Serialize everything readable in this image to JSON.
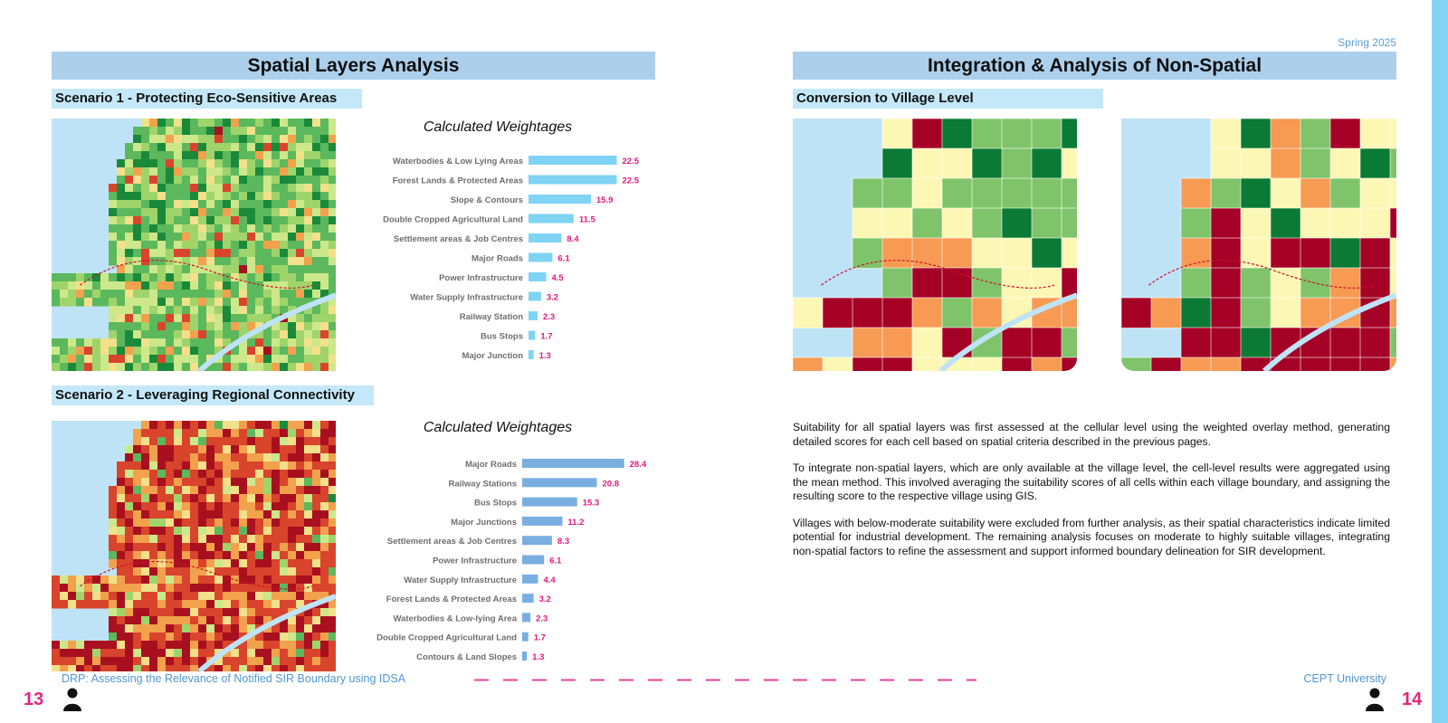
{
  "header": {
    "season": "Spring 2025"
  },
  "left": {
    "section_title": "Spatial Layers Analysis",
    "scenario1": {
      "title": "Scenario 1 - Protecting Eco-Sensitive Areas",
      "chart_title": "Calculated Weightages"
    },
    "scenario2": {
      "title": "Scenario 2 - Leveraging Regional Connectivity",
      "chart_title": "Calculated Weightages"
    }
  },
  "right": {
    "section_title": "Integration & Analysis of Non-Spatial",
    "subsection_title": "Conversion to Village Level",
    "paragraphs": [
      "Suitability for all spatial layers was first assessed at the cellular level using the weighted overlay method, generating detailed scores for each cell based on spatial criteria described in the previous pages.",
      "To integrate non-spatial layers, which are only available at the village level, the cell-level results were aggregated using the mean method. This involved averaging the suitability scores of all cells within each village boundary, and assigning the resulting score to the respective village using GIS.",
      "Villages with below-moderate suitability were excluded from further analysis, as their spatial characteristics indicate limited potential for industrial development. The remaining analysis focuses on moderate to highly suitable villages, integrating non-spatial factors to refine the assessment and support informed boundary delineation for SIR development."
    ]
  },
  "footer": {
    "left_text": "DRP: Assessing the Relevance of Notified SIR Boundary using IDSA",
    "right_text": "CEPT University",
    "page_left": "13",
    "page_right": "14"
  },
  "chart_data": [
    {
      "type": "bar",
      "orientation": "horizontal",
      "title": "Calculated Weightages",
      "categories": [
        "Waterbodies & Low Lying Areas",
        "Forest Lands & Protected Areas",
        "Slope & Contours",
        "Double Cropped Agricultural Land",
        "Settlement areas & Job Centres",
        "Major Roads",
        "Power Infrastructure",
        "Water Supply Infrastructure",
        "Railway Station",
        "Bus Stops",
        "Major Junction"
      ],
      "values": [
        22.5,
        22.5,
        15.9,
        11.5,
        8.4,
        6.1,
        4.5,
        3.2,
        2.3,
        1.7,
        1.3
      ],
      "labels": [
        "22.5",
        "22.5",
        "15.9",
        "11.5",
        "8.4",
        "6.1",
        "4.5",
        "3.2",
        "2.3",
        "1.7",
        "1.3"
      ],
      "xlim": [
        0,
        30
      ],
      "grid": false,
      "bar_color": "#7fd3f5",
      "label_color": "#e0197d"
    },
    {
      "type": "bar",
      "orientation": "horizontal",
      "title": "Calculated Weightages",
      "categories": [
        "Major Roads",
        "Railway Stations",
        "Bus Stops",
        "Major Junctions",
        "Settlement areas & Job Centres",
        "Power Infrastructure",
        "Water Supply Infrastructure",
        "Forest Lands & Protected Areas",
        "Waterbodies & Low-lying Area",
        "Double Cropped Agricultural Land",
        "Contours & Land Slopes"
      ],
      "values": [
        28.4,
        20.8,
        15.3,
        11.2,
        8.3,
        6.1,
        4.4,
        3.2,
        2.3,
        1.7,
        1.3
      ],
      "labels": [
        "28.4",
        "20.8",
        "15.3",
        "11.2",
        "8.3",
        "6.1",
        "4.4",
        "3.2",
        "2.3",
        "1.7",
        "1.3"
      ],
      "xlim": [
        0,
        30
      ],
      "grid": false,
      "bar_color": "#7aaee0",
      "label_color": "#e0197d"
    }
  ]
}
